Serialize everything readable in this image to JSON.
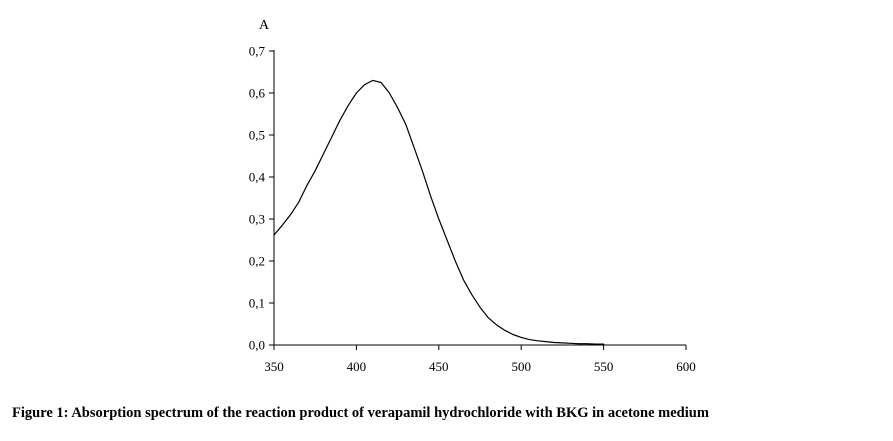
{
  "caption": "Figure 1: Absorption spectrum of the reaction product of verapamil hydrochloride with BKG in acetone medium",
  "chart_data": {
    "type": "line",
    "title": "",
    "xlabel": "",
    "ylabel": "A",
    "xlim": [
      350,
      600
    ],
    "ylim": [
      0,
      0.7
    ],
    "x_ticks": [
      350,
      400,
      450,
      500,
      550,
      600
    ],
    "x_tick_labels": [
      "350",
      "400",
      "450",
      "500",
      "550",
      "600"
    ],
    "y_ticks": [
      0,
      0.1,
      0.2,
      0.3,
      0.4,
      0.5,
      0.6,
      0.7
    ],
    "y_tick_labels": [
      "0,0",
      "0,1",
      "0,2",
      "0,3",
      "0,4",
      "0,5",
      "0,6",
      "0,7"
    ],
    "grid": false,
    "series": [
      {
        "color": "#000000",
        "x": [
          350,
          355,
          360,
          365,
          370,
          375,
          380,
          385,
          390,
          395,
          400,
          405,
          410,
          415,
          420,
          425,
          430,
          435,
          440,
          445,
          450,
          455,
          460,
          465,
          470,
          475,
          480,
          485,
          490,
          495,
          500,
          505,
          510,
          515,
          520,
          525,
          530,
          535,
          540,
          545,
          550
        ],
        "y": [
          0.262,
          0.285,
          0.31,
          0.34,
          0.38,
          0.415,
          0.455,
          0.495,
          0.535,
          0.57,
          0.6,
          0.62,
          0.63,
          0.625,
          0.6,
          0.565,
          0.525,
          0.47,
          0.415,
          0.355,
          0.3,
          0.25,
          0.2,
          0.155,
          0.12,
          0.09,
          0.065,
          0.048,
          0.035,
          0.025,
          0.018,
          0.013,
          0.01,
          0.008,
          0.006,
          0.005,
          0.004,
          0.003,
          0.003,
          0.002,
          0.002
        ]
      }
    ]
  }
}
